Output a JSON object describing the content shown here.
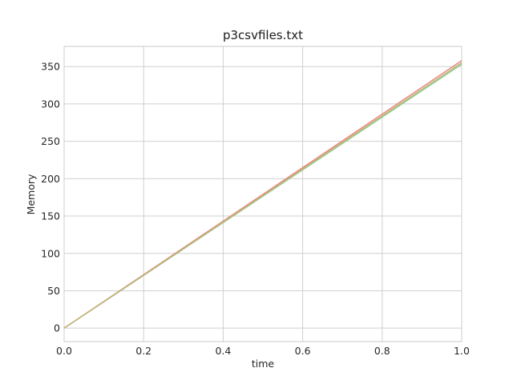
{
  "chart_data": {
    "type": "line",
    "title": "p3csvfiles.txt",
    "xlabel": "time",
    "ylabel": "Memory",
    "xlim": [
      0.0,
      1.0
    ],
    "ylim": [
      -18,
      377
    ],
    "xticks": [
      0.0,
      0.2,
      0.4,
      0.6,
      0.8,
      1.0
    ],
    "xtick_labels": [
      "0.0",
      "0.2",
      "0.4",
      "0.6",
      "0.8",
      "1.0"
    ],
    "yticks": [
      0,
      50,
      100,
      150,
      200,
      250,
      300,
      350
    ],
    "ytick_labels": [
      "0",
      "50",
      "100",
      "150",
      "200",
      "250",
      "300",
      "350"
    ],
    "grid": true,
    "series": [
      {
        "color": "#e8877f",
        "x": [
          0.0,
          1.0
        ],
        "y": [
          0,
          358
        ]
      },
      {
        "color": "#8fd18f",
        "x": [
          0.0,
          1.0
        ],
        "y": [
          0,
          353
        ]
      },
      {
        "color": "#c2b27a",
        "x": [
          0.0,
          1.0
        ],
        "y": [
          0,
          355
        ]
      }
    ]
  }
}
